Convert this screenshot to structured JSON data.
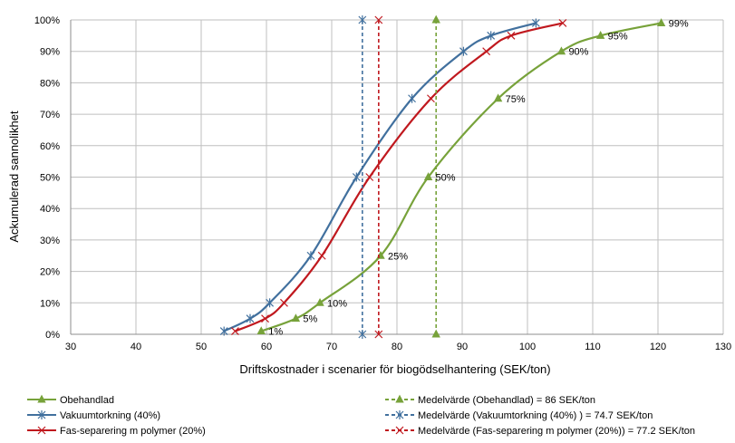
{
  "chart_data": {
    "type": "line",
    "xlabel": "Driftskostnader i scenarier för biogödselhantering (SEK/ton)",
    "ylabel": "Ackumulerad sannolikhet",
    "xlim": [
      30,
      130
    ],
    "ylim": [
      0,
      100
    ],
    "x_ticks": [
      "30",
      "40",
      "50",
      "60",
      "70",
      "80",
      "90",
      "100",
      "110",
      "120",
      "130"
    ],
    "y_ticks": [
      "0%",
      "10%",
      "20%",
      "30%",
      "40%",
      "50%",
      "60%",
      "70%",
      "80%",
      "90%",
      "100%"
    ],
    "grid": true,
    "legend_position": "bottom",
    "series": [
      {
        "name": "Obehandlad",
        "color": "#77a23a",
        "marker": "triangle",
        "x": [
          59.2,
          64.5,
          68.2,
          77.5,
          84.8,
          95.5,
          105.2,
          111.2,
          120.5
        ],
        "y": [
          1,
          5,
          10,
          25,
          50,
          75,
          90,
          95,
          99
        ],
        "labels": [
          "1%",
          "5%",
          "10%",
          "25%",
          "50%",
          "75%",
          "90%",
          "95%",
          "99%"
        ]
      },
      {
        "name": "Vakuumtorkning (40%)",
        "color": "#41709e",
        "marker": "asterisk",
        "x": [
          53.5,
          57.5,
          60.5,
          66.8,
          73.8,
          82.3,
          90.2,
          94.4,
          101.3
        ],
        "y": [
          1,
          5,
          10,
          25,
          50,
          75,
          90,
          95,
          99
        ]
      },
      {
        "name": "Fas-separering m polymer (20%)",
        "color": "#c0181e",
        "marker": "x",
        "x": [
          55.2,
          59.8,
          62.7,
          68.5,
          75.8,
          85.2,
          93.7,
          97.5,
          105.4
        ],
        "y": [
          1,
          5,
          10,
          25,
          50,
          75,
          90,
          95,
          99
        ]
      },
      {
        "name": "Medelvärde (Obehandlad) = 86 SEK/ton",
        "color": "#77a23a",
        "marker": "triangle",
        "dashed": true,
        "x": [
          86,
          86
        ],
        "y": [
          0,
          100
        ]
      },
      {
        "name": "Medelvärde (Vakuumtorkning (40%) ) = 74.7 SEK/ton",
        "color": "#41709e",
        "marker": "asterisk",
        "dashed": true,
        "x": [
          74.7,
          74.7
        ],
        "y": [
          0,
          100
        ]
      },
      {
        "name": "Medelvärde (Fas-separering m polymer (20%)) = 77.2 SEK/ton",
        "color": "#c0181e",
        "marker": "x",
        "dashed": true,
        "x": [
          77.2,
          77.2
        ],
        "y": [
          0,
          100
        ]
      }
    ]
  }
}
